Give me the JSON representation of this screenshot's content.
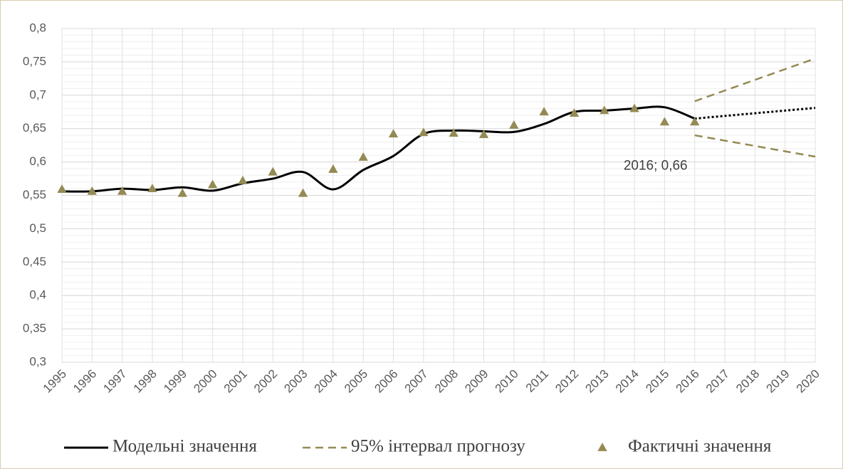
{
  "chart_data": {
    "type": "line",
    "categories": [
      "1995",
      "1996",
      "1997",
      "1998",
      "1999",
      "2000",
      "2001",
      "2002",
      "2003",
      "2004",
      "2005",
      "2006",
      "2007",
      "2008",
      "2009",
      "2010",
      "2011",
      "2012",
      "2013",
      "2014",
      "2015",
      "2016",
      "2017",
      "2018",
      "2019",
      "2020"
    ],
    "series": [
      {
        "name": "Модельні значення",
        "color": "#000000",
        "style": "solid",
        "smooth": true,
        "forecast_from": "2016",
        "values": [
          0.556,
          0.556,
          0.56,
          0.558,
          0.562,
          0.557,
          0.568,
          0.575,
          0.585,
          0.559,
          0.588,
          0.609,
          0.642,
          0.647,
          0.646,
          0.645,
          0.657,
          0.675,
          0.677,
          0.68,
          0.682,
          0.665,
          0.669,
          0.673,
          0.677,
          0.681
        ]
      },
      {
        "name": "95% інтервал прогнозу",
        "color": "#948a54",
        "style": "dashed",
        "values": [
          null,
          null,
          null,
          null,
          null,
          null,
          null,
          null,
          null,
          null,
          null,
          null,
          null,
          null,
          null,
          null,
          null,
          null,
          null,
          null,
          null,
          0.691,
          0.707,
          0.723,
          0.739,
          0.755
        ],
        "lower": [
          null,
          null,
          null,
          null,
          null,
          null,
          null,
          null,
          null,
          null,
          null,
          null,
          null,
          null,
          null,
          null,
          null,
          null,
          null,
          null,
          null,
          0.64,
          0.632,
          0.624,
          0.616,
          0.608
        ]
      },
      {
        "name": "Фактичні значення",
        "color": "#948a54",
        "style": "triangle",
        "values": [
          0.559,
          0.556,
          0.556,
          0.56,
          0.553,
          0.566,
          0.572,
          0.585,
          0.553,
          0.589,
          0.607,
          0.642,
          0.644,
          0.643,
          0.641,
          0.655,
          0.675,
          0.673,
          0.677,
          0.68,
          0.66,
          0.66,
          null,
          null,
          null,
          null
        ]
      }
    ],
    "annotations": [
      {
        "text": "2016; 0,66",
        "series": 2,
        "index": 21
      }
    ],
    "ylim": [
      0.3,
      0.8
    ],
    "yticks": [
      {
        "value": 0.3,
        "label": "0,3"
      },
      {
        "value": 0.35,
        "label": "0,35"
      },
      {
        "value": 0.4,
        "label": "0,4"
      },
      {
        "value": 0.45,
        "label": "0,45"
      },
      {
        "value": 0.5,
        "label": "0,5"
      },
      {
        "value": 0.55,
        "label": "0,55"
      },
      {
        "value": 0.6,
        "label": "0,6"
      },
      {
        "value": 0.65,
        "label": "0,65"
      },
      {
        "value": 0.7,
        "label": "0,7"
      },
      {
        "value": 0.75,
        "label": "0,75"
      },
      {
        "value": 0.8,
        "label": "0,8"
      }
    ],
    "grid": true,
    "minor_grid": 0.01,
    "legend": "bottom"
  }
}
